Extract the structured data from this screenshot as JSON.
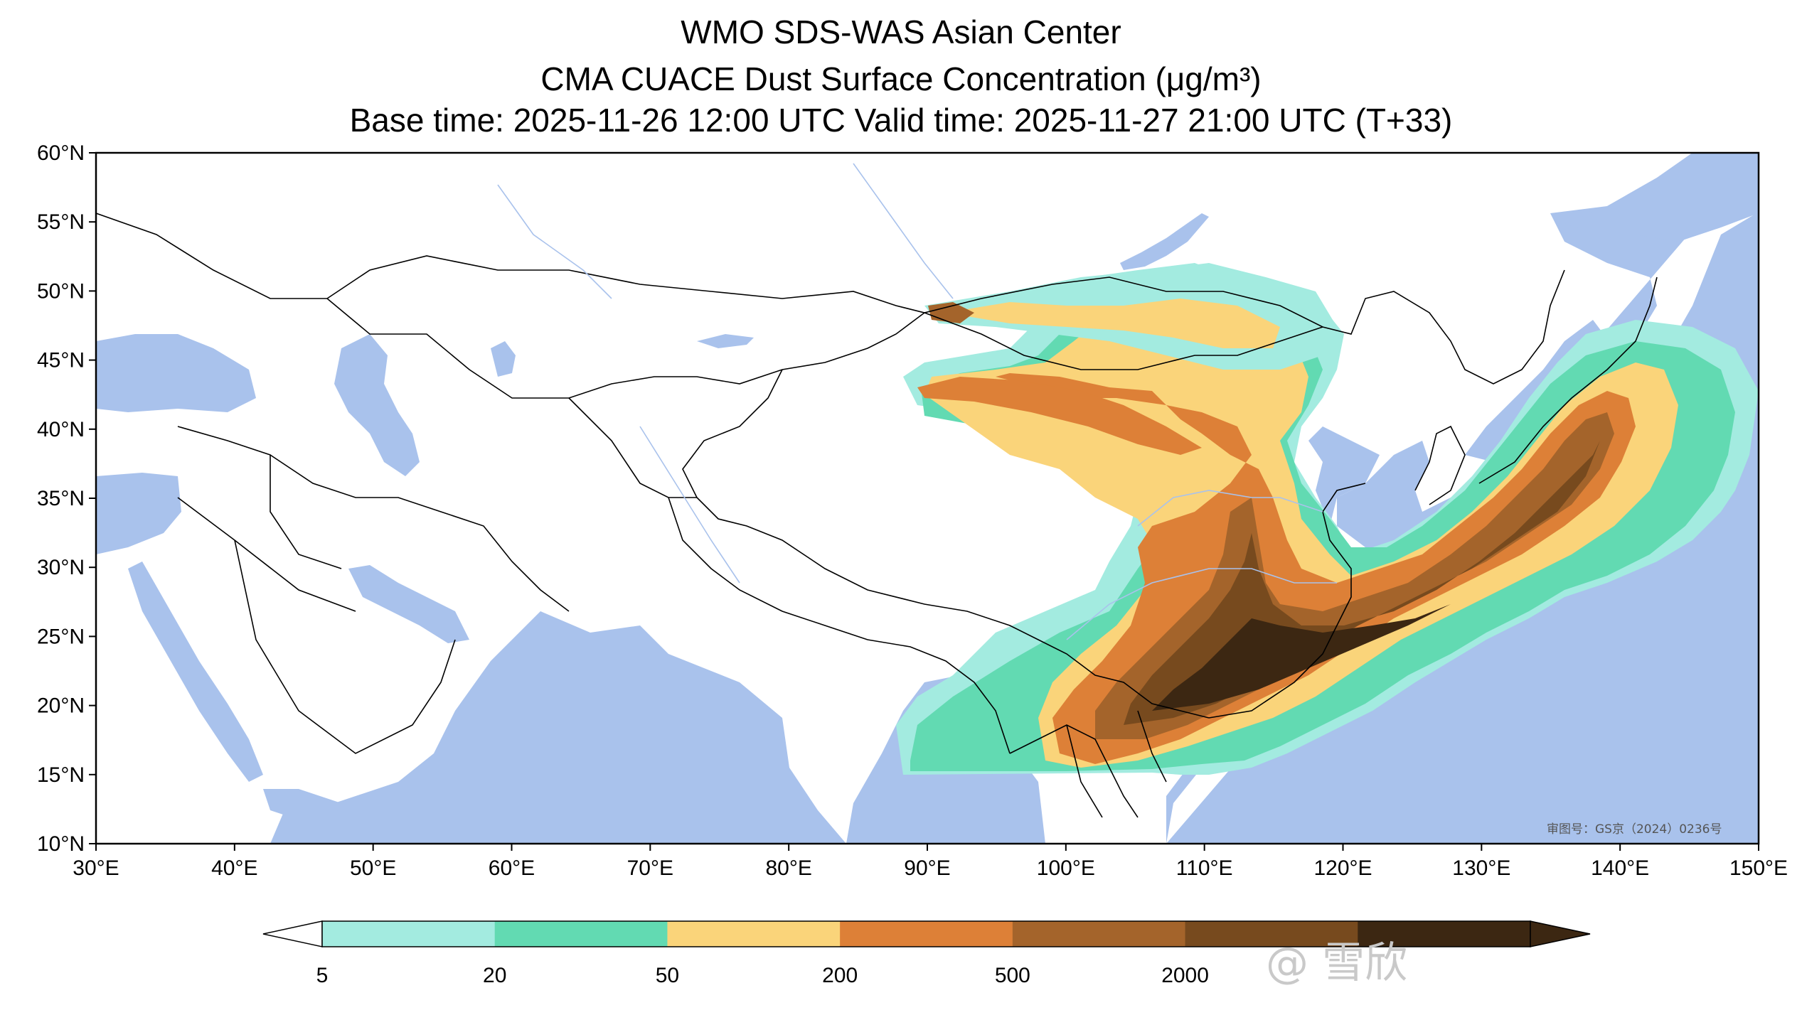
{
  "title": {
    "line1": "WMO SDS-WAS Asian Center",
    "line2": "CMA CUACE Dust Surface Concentration (μg/m³)",
    "line3": "Base time: 2025-11-26 12:00 UTC Valid time: 2025-11-27 21:00 UTC (T+33)"
  },
  "map": {
    "lon_range": [
      30,
      150
    ],
    "lat_range": [
      10,
      60
    ],
    "lon_ticks": [
      "30°E",
      "40°E",
      "50°E",
      "60°E",
      "70°E",
      "80°E",
      "90°E",
      "100°E",
      "110°E",
      "120°E",
      "130°E",
      "140°E",
      "150°E"
    ],
    "lat_ticks": [
      "60°N",
      "55°N",
      "50°N",
      "45°N",
      "40°N",
      "35°N",
      "30°N",
      "25°N",
      "20°N",
      "15°N",
      "10°N"
    ],
    "land_color": "#ffffff",
    "water_color": "#a9c2ec",
    "border_color": "#000000",
    "stamp": "审图号：GS京（2024）0236号"
  },
  "colorbar": {
    "levels": [
      "5",
      "20",
      "50",
      "200",
      "500",
      "2000"
    ],
    "colors": [
      "#a3ebe0",
      "#62dab2",
      "#fad47a",
      "#dd8037",
      "#a4642b",
      "#774a1e",
      "#3c2712"
    ]
  },
  "watermark": "@    雪欣"
}
